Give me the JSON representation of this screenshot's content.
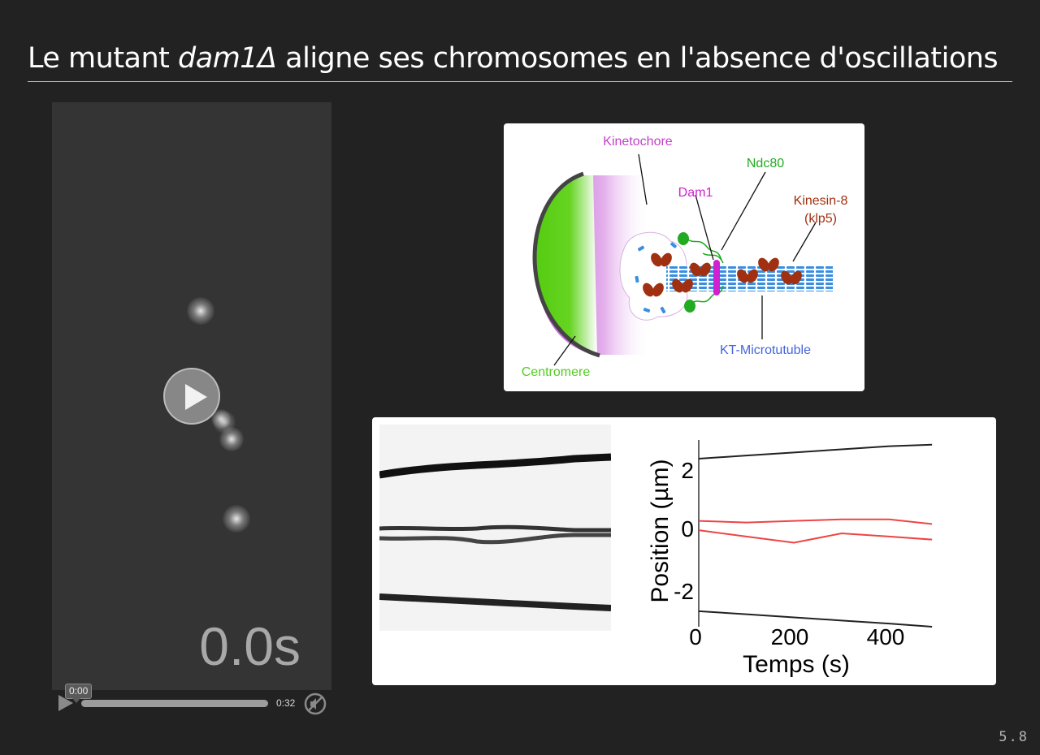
{
  "slide": {
    "title_pre": "Le mutant ",
    "title_italic": "dam1Δ",
    "title_post": " aligne ses chromosomes en l'absence d'oscillations",
    "number": "5.8"
  },
  "video": {
    "timestamp": "0.0s",
    "current_time": "0:00",
    "duration": "0:32"
  },
  "diagram": {
    "labels": {
      "kinetochore": "Kinetochore",
      "ndc80": "Ndc80",
      "dam1": "Dam1",
      "kinesin8_line1": "Kinesin-8",
      "kinesin8_line2": "(klp5)",
      "microtubule": "KT-Microtutuble",
      "centromere": "Centromere"
    },
    "colors": {
      "kinetochore": "#c040c8",
      "ndc80": "#22aa22",
      "dam1": "#d020d0",
      "kinesin8": "#a03010",
      "microtubule": "#4466dd",
      "centromere": "#55cc22"
    }
  },
  "chart_data": {
    "type": "line",
    "xlabel": "Temps (s)",
    "ylabel": "Position (µm)",
    "xlim": [
      0,
      500
    ],
    "ylim": [
      -3,
      3
    ],
    "xticks": [
      "0",
      "200",
      "400"
    ],
    "yticks": [
      "2",
      "0",
      "-2"
    ],
    "series": [
      {
        "color": "#222222",
        "x": [
          0,
          100,
          200,
          300,
          400,
          490
        ],
        "y": [
          2.4,
          2.5,
          2.6,
          2.7,
          2.8,
          2.85
        ]
      },
      {
        "color": "#ee4444",
        "x": [
          0,
          100,
          200,
          300,
          400,
          490
        ],
        "y": [
          0.4,
          0.35,
          0.4,
          0.45,
          0.45,
          0.3
        ]
      },
      {
        "color": "#ee4444",
        "x": [
          0,
          100,
          200,
          300,
          400,
          490
        ],
        "y": [
          0.1,
          -0.1,
          -0.3,
          0.0,
          -0.1,
          -0.2
        ]
      },
      {
        "color": "#222222",
        "x": [
          0,
          100,
          200,
          300,
          400,
          490
        ],
        "y": [
          -2.5,
          -2.6,
          -2.7,
          -2.8,
          -2.9,
          -3.0
        ]
      }
    ]
  }
}
